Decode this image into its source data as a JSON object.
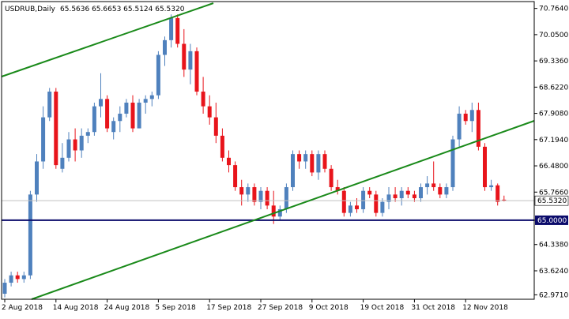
{
  "header": {
    "symbol": "USDRUB,Daily",
    "ohlc": "65.5636 65.6653 65.5124 65.5320"
  },
  "colors": {
    "bull": "#4f81bd",
    "bear": "#e8141b",
    "trend": "#1a8a1a",
    "support": "#0b0b6b",
    "frame": "#000000",
    "grid_ref": "#c0c0c0"
  },
  "chart_data": {
    "type": "candlestick",
    "title": "USDRUB,Daily",
    "ylim": [
      62.85,
      70.95
    ],
    "y_ticks": [
      "70.7640",
      "70.0500",
      "69.3360",
      "68.6220",
      "67.9080",
      "67.1940",
      "66.4800",
      "65.7660",
      "65.0000",
      "64.3380",
      "63.6240",
      "62.9710"
    ],
    "x_tick_labels": [
      "2 Aug 2018",
      "14 Aug 2018",
      "24 Aug 2018",
      "5 Sep 2018",
      "17 Sep 2018",
      "27 Sep 2018",
      "9 Oct 2018",
      "19 Oct 2018",
      "31 Oct 2018",
      "12 Nov 2018"
    ],
    "x_tick_index": [
      0,
      8,
      16,
      24,
      32,
      40,
      48,
      56,
      64,
      72
    ],
    "current_price": "65.5320",
    "support_level": "65.0000",
    "candles": [
      [
        63.0,
        63.4,
        62.9,
        63.3
      ],
      [
        63.3,
        63.6,
        63.2,
        63.5
      ],
      [
        63.5,
        63.6,
        63.3,
        63.4
      ],
      [
        63.4,
        63.6,
        63.3,
        63.5
      ],
      [
        63.5,
        65.8,
        63.4,
        65.7
      ],
      [
        65.7,
        66.8,
        65.5,
        66.6
      ],
      [
        66.6,
        68.1,
        66.4,
        67.8
      ],
      [
        67.8,
        68.6,
        67.7,
        68.5
      ],
      [
        68.5,
        68.6,
        66.4,
        66.5
      ],
      [
        66.4,
        67.1,
        66.3,
        66.7
      ],
      [
        66.7,
        67.4,
        66.6,
        67.2
      ],
      [
        67.2,
        67.5,
        66.6,
        66.9
      ],
      [
        66.9,
        67.5,
        66.7,
        67.3
      ],
      [
        67.3,
        67.5,
        67.1,
        67.4
      ],
      [
        67.4,
        68.2,
        67.3,
        68.1
      ],
      [
        68.1,
        69.0,
        67.8,
        68.3
      ],
      [
        68.3,
        68.4,
        67.4,
        67.5
      ],
      [
        67.4,
        67.8,
        67.2,
        67.7
      ],
      [
        67.7,
        68.1,
        67.4,
        67.9
      ],
      [
        67.9,
        68.3,
        67.8,
        68.2
      ],
      [
        68.2,
        68.4,
        67.4,
        67.5
      ],
      [
        67.5,
        68.3,
        67.5,
        68.2
      ],
      [
        68.2,
        68.4,
        67.9,
        68.3
      ],
      [
        68.3,
        68.5,
        68.1,
        68.4
      ],
      [
        68.4,
        69.6,
        68.3,
        69.5
      ],
      [
        69.5,
        70.0,
        69.2,
        69.9
      ],
      [
        69.9,
        70.6,
        69.7,
        70.5
      ],
      [
        70.5,
        70.6,
        69.7,
        69.8
      ],
      [
        69.8,
        70.2,
        68.9,
        69.1
      ],
      [
        69.1,
        69.8,
        68.7,
        69.6
      ],
      [
        69.6,
        69.7,
        68.4,
        68.5
      ],
      [
        68.5,
        68.9,
        67.9,
        68.1
      ],
      [
        68.1,
        68.4,
        67.6,
        67.8
      ],
      [
        67.8,
        68.2,
        67.1,
        67.3
      ],
      [
        67.3,
        67.5,
        66.6,
        66.7
      ],
      [
        66.7,
        66.9,
        66.3,
        66.5
      ],
      [
        66.5,
        66.6,
        65.8,
        65.9
      ],
      [
        65.9,
        66.1,
        65.4,
        65.7
      ],
      [
        65.7,
        66.0,
        65.5,
        65.9
      ],
      [
        65.9,
        66.0,
        65.4,
        65.5
      ],
      [
        65.5,
        65.9,
        65.3,
        65.8
      ],
      [
        65.8,
        65.9,
        65.3,
        65.4
      ],
      [
        65.4,
        65.8,
        64.9,
        65.1
      ],
      [
        65.1,
        65.4,
        65.0,
        65.3
      ],
      [
        65.3,
        66.0,
        65.2,
        65.9
      ],
      [
        65.9,
        66.9,
        65.8,
        66.8
      ],
      [
        66.8,
        66.9,
        66.4,
        66.6
      ],
      [
        66.6,
        66.9,
        66.4,
        66.8
      ],
      [
        66.8,
        66.9,
        66.2,
        66.3
      ],
      [
        66.3,
        66.9,
        66.1,
        66.8
      ],
      [
        66.8,
        66.9,
        66.3,
        66.4
      ],
      [
        66.4,
        66.5,
        65.8,
        65.9
      ],
      [
        65.9,
        66.1,
        65.7,
        65.8
      ],
      [
        65.8,
        65.9,
        65.1,
        65.2
      ],
      [
        65.2,
        65.5,
        65.1,
        65.4
      ],
      [
        65.4,
        65.6,
        65.2,
        65.3
      ],
      [
        65.3,
        65.9,
        65.2,
        65.8
      ],
      [
        65.8,
        65.9,
        65.6,
        65.7
      ],
      [
        65.7,
        65.8,
        65.1,
        65.2
      ],
      [
        65.2,
        65.6,
        65.1,
        65.5
      ],
      [
        65.5,
        65.9,
        65.3,
        65.7
      ],
      [
        65.7,
        65.9,
        65.5,
        65.6
      ],
      [
        65.6,
        65.9,
        65.4,
        65.8
      ],
      [
        65.8,
        65.9,
        65.6,
        65.7
      ],
      [
        65.7,
        65.8,
        65.5,
        65.6
      ],
      [
        65.6,
        66.0,
        65.5,
        65.9
      ],
      [
        65.9,
        66.2,
        65.7,
        66.0
      ],
      [
        66.0,
        66.6,
        65.8,
        65.9
      ],
      [
        65.9,
        66.0,
        65.6,
        65.7
      ],
      [
        65.7,
        66.0,
        65.6,
        65.9
      ],
      [
        65.9,
        67.3,
        65.8,
        67.2
      ],
      [
        67.2,
        68.1,
        67.0,
        67.9
      ],
      [
        67.9,
        68.0,
        67.6,
        67.7
      ],
      [
        67.7,
        68.2,
        67.4,
        68.0
      ],
      [
        68.0,
        68.2,
        66.9,
        67.0
      ],
      [
        67.0,
        67.1,
        65.8,
        65.9
      ],
      [
        65.9,
        66.1,
        65.8,
        65.95
      ],
      [
        65.95,
        66.0,
        65.4,
        65.5
      ],
      [
        65.56,
        65.67,
        65.51,
        65.53
      ]
    ]
  }
}
